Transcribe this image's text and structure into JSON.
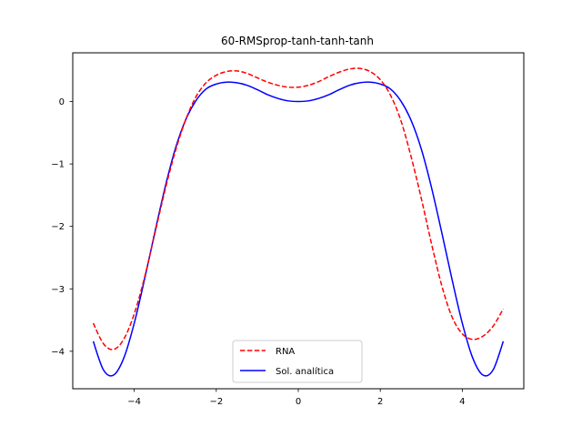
{
  "chart_data": {
    "type": "line",
    "title": "60-RMSprop-tanh-tanh-tanh",
    "xlabel": "",
    "ylabel": "",
    "xlim": [
      -5.5,
      5.5
    ],
    "ylim": [
      -4.6,
      0.78
    ],
    "xticks": [
      -4,
      -2,
      0,
      2,
      4
    ],
    "xtick_labels": [
      "−4",
      "−2",
      "0",
      "2",
      "4"
    ],
    "yticks": [
      -4,
      -3,
      -2,
      -1,
      0
    ],
    "ytick_labels": [
      "−4",
      "−3",
      "−2",
      "−1",
      "0"
    ],
    "grid": false,
    "legend_position": "bottom-center",
    "series": [
      {
        "name": "RNA",
        "color": "#ff0000",
        "style": "dashed",
        "x": [
          -5.0,
          -4.75,
          -4.5,
          -4.25,
          -4.0,
          -3.75,
          -3.5,
          -3.25,
          -3.0,
          -2.75,
          -2.5,
          -2.25,
          -2.0,
          -1.75,
          -1.5,
          -1.25,
          -1.0,
          -0.75,
          -0.5,
          -0.25,
          0.0,
          0.25,
          0.5,
          0.75,
          1.0,
          1.25,
          1.5,
          1.75,
          2.0,
          2.25,
          2.5,
          2.75,
          3.0,
          3.25,
          3.5,
          3.75,
          4.0,
          4.25,
          4.5,
          4.75,
          5.0
        ],
        "y": [
          -3.55,
          -3.88,
          -3.97,
          -3.8,
          -3.4,
          -2.82,
          -2.12,
          -1.42,
          -0.8,
          -0.3,
          0.07,
          0.3,
          0.42,
          0.48,
          0.49,
          0.45,
          0.38,
          0.31,
          0.26,
          0.23,
          0.23,
          0.26,
          0.32,
          0.4,
          0.47,
          0.52,
          0.53,
          0.48,
          0.35,
          0.1,
          -0.3,
          -0.88,
          -1.55,
          -2.28,
          -2.95,
          -3.45,
          -3.72,
          -3.81,
          -3.76,
          -3.6,
          -3.32
        ]
      },
      {
        "name": "Sol. analítica",
        "color": "#0000ff",
        "style": "solid",
        "x": [
          -5.0,
          -4.75,
          -4.5,
          -4.25,
          -4.0,
          -3.75,
          -3.5,
          -3.25,
          -3.0,
          -2.75,
          -2.5,
          -2.25,
          -2.0,
          -1.75,
          -1.5,
          -1.25,
          -1.0,
          -0.75,
          -0.5,
          -0.25,
          0.0,
          0.25,
          0.5,
          0.75,
          1.0,
          1.25,
          1.5,
          1.75,
          2.0,
          2.25,
          2.5,
          2.75,
          3.0,
          3.25,
          3.5,
          3.75,
          4.0,
          4.25,
          4.5,
          4.75,
          5.0
        ],
        "y": [
          -3.84,
          -4.3,
          -4.38,
          -4.1,
          -3.55,
          -2.85,
          -2.1,
          -1.38,
          -0.76,
          -0.3,
          0.01,
          0.2,
          0.28,
          0.31,
          0.3,
          0.26,
          0.19,
          0.11,
          0.05,
          0.01,
          0.0,
          0.01,
          0.05,
          0.11,
          0.19,
          0.26,
          0.3,
          0.31,
          0.28,
          0.2,
          0.01,
          -0.3,
          -0.76,
          -1.38,
          -2.1,
          -2.85,
          -3.55,
          -4.1,
          -4.38,
          -4.3,
          -3.84
        ]
      }
    ]
  }
}
